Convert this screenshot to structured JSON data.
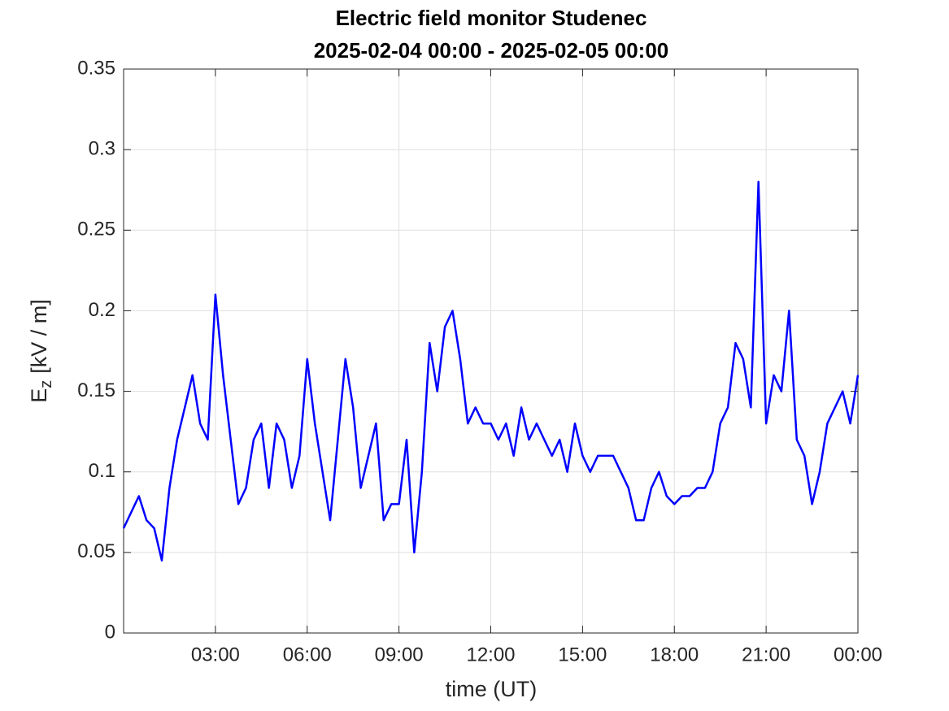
{
  "chart_data": {
    "type": "line",
    "title": "Electric field monitor Studenec",
    "subtitle": "2025-02-04 00:00 - 2025-02-05 00:00",
    "xlabel": "time (UT)",
    "ylabel": "E",
    "ylabel_subscript": "z",
    "ylabel_unit": "[kV / m]",
    "xlim": [
      0,
      24
    ],
    "ylim": [
      0,
      0.35
    ],
    "xticks": [
      {
        "value": 3,
        "label": "03:00"
      },
      {
        "value": 6,
        "label": "06:00"
      },
      {
        "value": 9,
        "label": "09:00"
      },
      {
        "value": 12,
        "label": "12:00"
      },
      {
        "value": 15,
        "label": "15:00"
      },
      {
        "value": 18,
        "label": "18:00"
      },
      {
        "value": 21,
        "label": "21:00"
      },
      {
        "value": 24,
        "label": "00:00"
      }
    ],
    "yticks": [
      0,
      0.05,
      0.1,
      0.15,
      0.2,
      0.25,
      0.3,
      0.35
    ],
    "grid": true,
    "x": [
      0,
      0.25,
      0.5,
      0.75,
      1,
      1.25,
      1.5,
      1.75,
      2,
      2.25,
      2.5,
      2.75,
      3,
      3.25,
      3.5,
      3.75,
      4,
      4.25,
      4.5,
      4.75,
      5,
      5.25,
      5.5,
      5.75,
      6,
      6.25,
      6.5,
      6.75,
      7,
      7.25,
      7.5,
      7.75,
      8,
      8.25,
      8.5,
      8.75,
      9,
      9.25,
      9.5,
      9.75,
      10,
      10.25,
      10.5,
      10.75,
      11,
      11.25,
      11.5,
      11.75,
      12,
      12.25,
      12.5,
      12.75,
      13,
      13.25,
      13.5,
      13.75,
      14,
      14.25,
      14.5,
      14.75,
      15,
      15.25,
      15.5,
      15.75,
      16,
      16.25,
      16.5,
      16.75,
      17,
      17.25,
      17.5,
      17.75,
      18,
      18.25,
      18.5,
      18.75,
      19,
      19.25,
      19.5,
      19.75,
      20,
      20.25,
      20.5,
      20.75,
      21,
      21.25,
      21.5,
      21.75,
      22,
      22.25,
      22.5,
      22.75,
      23,
      23.25,
      23.5,
      23.75,
      24
    ],
    "series": [
      {
        "color": "#0000ff",
        "values": [
          0.065,
          0.075,
          0.085,
          0.07,
          0.065,
          0.045,
          0.09,
          0.12,
          0.14,
          0.16,
          0.13,
          0.12,
          0.21,
          0.16,
          0.12,
          0.08,
          0.09,
          0.12,
          0.13,
          0.09,
          0.13,
          0.12,
          0.09,
          0.11,
          0.17,
          0.13,
          0.1,
          0.07,
          0.12,
          0.17,
          0.14,
          0.09,
          0.11,
          0.13,
          0.07,
          0.08,
          0.08,
          0.12,
          0.05,
          0.1,
          0.18,
          0.15,
          0.19,
          0.2,
          0.17,
          0.13,
          0.14,
          0.13,
          0.13,
          0.12,
          0.13,
          0.11,
          0.14,
          0.12,
          0.13,
          0.12,
          0.11,
          0.12,
          0.1,
          0.13,
          0.11,
          0.1,
          0.11,
          0.11,
          0.11,
          0.1,
          0.09,
          0.07,
          0.07,
          0.09,
          0.1,
          0.085,
          0.08,
          0.085,
          0.085,
          0.09,
          0.09,
          0.1,
          0.13,
          0.14,
          0.18,
          0.17,
          0.14,
          0.28,
          0.13,
          0.16,
          0.15,
          0.2,
          0.12,
          0.11,
          0.08,
          0.1,
          0.13,
          0.14,
          0.15,
          0.13,
          0.16
        ]
      }
    ]
  }
}
